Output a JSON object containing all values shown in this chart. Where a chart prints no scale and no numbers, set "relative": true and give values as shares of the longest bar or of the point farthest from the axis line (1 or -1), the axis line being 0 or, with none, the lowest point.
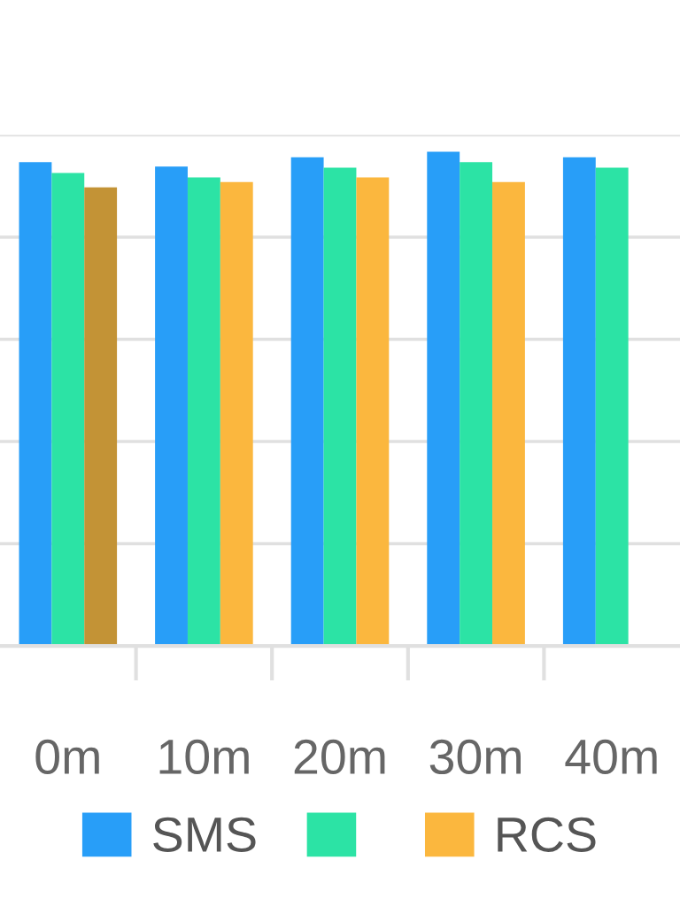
{
  "chart_data": {
    "type": "bar",
    "relative": true,
    "grid": "y",
    "legend": "bottom",
    "categories": [
      "0m",
      "10m",
      "20m",
      "30m",
      "40m"
    ],
    "series": [
      {
        "name": "SMS",
        "color": "#289ef8",
        "values": [
          0.979,
          0.97,
          0.989,
          1.0,
          0.989
        ]
      },
      {
        "color": "#2ce3a5",
        "values": [
          0.957,
          0.948,
          0.968,
          0.979,
          0.968
        ]
      },
      {
        "name": "RCS",
        "color": "#fbb73e",
        "colors": [
          "#c39336",
          "#fbb73e",
          "#fbb73e",
          "#fbb73e",
          null
        ],
        "values": [
          0.928,
          0.939,
          0.948,
          0.939,
          null
        ]
      }
    ]
  }
}
